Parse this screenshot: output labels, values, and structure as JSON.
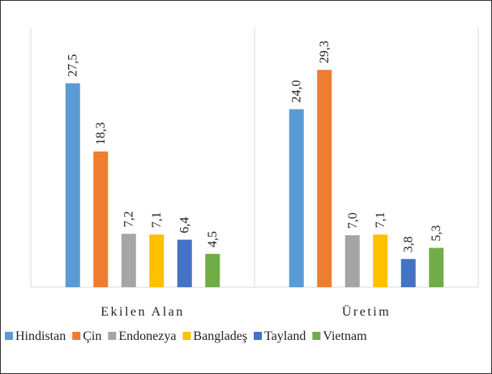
{
  "chart_data": {
    "type": "bar",
    "categories": [
      "Ekilen Alan",
      "Üretim"
    ],
    "series": [
      {
        "name": "Hindistan",
        "color": "#5b9bd5",
        "values": [
          27.5,
          24.0
        ],
        "value_labels": [
          "27,5",
          "24,0"
        ]
      },
      {
        "name": "Çin",
        "color": "#ed7d31",
        "values": [
          18.3,
          29.3
        ],
        "value_labels": [
          "18,3",
          "29,3"
        ]
      },
      {
        "name": "Endonezya",
        "color": "#a5a5a5",
        "values": [
          7.2,
          7.0
        ],
        "value_labels": [
          "7,2",
          "7,0"
        ]
      },
      {
        "name": "Bangladeş",
        "color": "#ffc000",
        "values": [
          7.1,
          7.1
        ],
        "value_labels": [
          "7,1",
          "7,1"
        ]
      },
      {
        "name": "Tayland",
        "color": "#4472c4",
        "values": [
          6.4,
          3.8
        ],
        "value_labels": [
          "6,4",
          "3,8"
        ]
      },
      {
        "name": "Vietnam",
        "color": "#70ad47",
        "values": [
          4.5,
          5.3
        ],
        "value_labels": [
          "4,5",
          "5,3"
        ]
      }
    ],
    "ylim": [
      0,
      35
    ],
    "legend": "bottom"
  }
}
